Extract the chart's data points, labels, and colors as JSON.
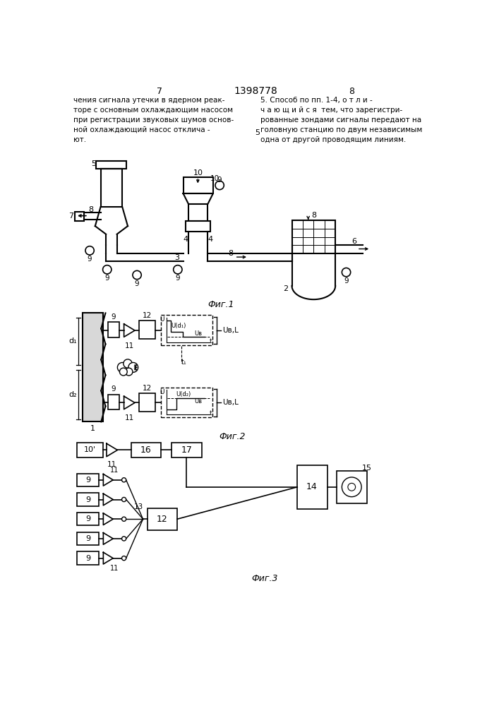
{
  "title": "1398778",
  "page_left": "7",
  "page_right": "8",
  "text_left": "чения сигнала утечки в ядерном реак-\nторе с основным охлаждающим насосом\nпри регистрации звуковых шумов основ-\nной охлаждающий насос отклича -\nют.",
  "text_right": "5. Способ по пп. 1-4, о т л и -\nч а ю щ и й с я  тем, что зарегистри-\nрованные зондами сигналы передают на\nголовную станцию по двум независимым\nодна от другой проводящим линиям.",
  "fig1_label": "Фиг.1",
  "fig2_label": "Фиг.2",
  "fig3_label": "Фиг.3",
  "bg_color": "#ffffff",
  "line_color": "#000000",
  "text_color": "#000000"
}
